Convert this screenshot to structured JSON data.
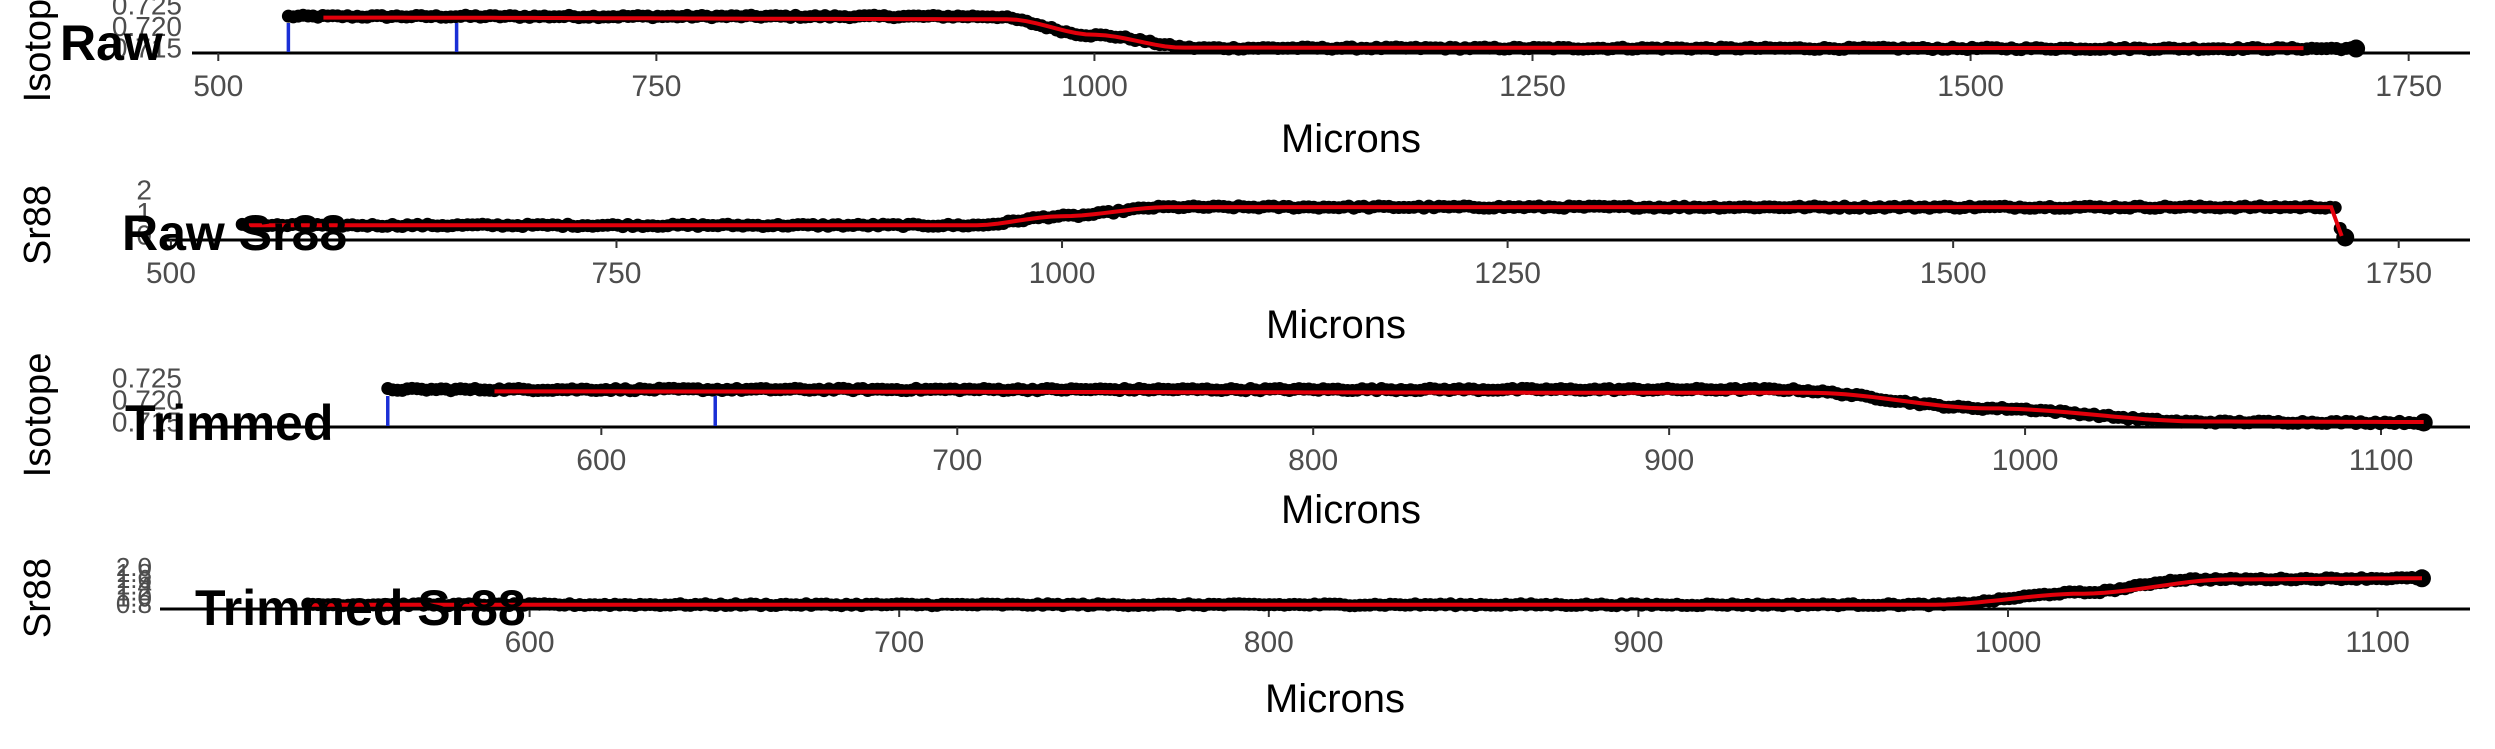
{
  "colors": {
    "points": "#000000",
    "fit": "#e3000b",
    "marker": "#1a2fd6",
    "axis": "#000000"
  },
  "chart_data": [
    {
      "type": "scatter",
      "title": "Raw",
      "xlabel": "Microns",
      "ylabel": "Isotope",
      "xlim": [
        485,
        1785
      ],
      "xticks": [
        "500",
        "750",
        "1000",
        "1250",
        "1500",
        "1750"
      ],
      "yticks": [
        "0.725",
        "0.720",
        "0.715"
      ],
      "ylim": [
        0.7095,
        0.7265
      ],
      "x_range": [
        540,
        1720
      ],
      "markers_x": [
        540,
        636
      ],
      "points_profile": {
        "x": [
          540,
          940,
          1000,
          1060,
          1720
        ],
        "y": [
          0.725,
          0.725,
          0.7168,
          0.7112,
          0.711
        ]
      },
      "fit_profile": {
        "x": [
          560,
          950,
          1000,
          1050,
          1690
        ],
        "y": [
          0.7245,
          0.7238,
          0.717,
          0.7114,
          0.7112
        ]
      }
    },
    {
      "type": "scatter",
      "title": "Raw Sr88",
      "xlabel": "Microns",
      "ylabel": "Sr88",
      "xlim": [
        495,
        1790
      ],
      "xticks": [
        "500",
        "750",
        "1000",
        "1250",
        "1500",
        "1750"
      ],
      "yticks": [
        "2",
        "1",
        "0"
      ],
      "ylim": [
        0,
        2.7
      ],
      "x_range": [
        540,
        1720
      ],
      "points_profile": {
        "x": [
          540,
          950,
          1000,
          1060,
          1715,
          1718,
          1720
        ],
        "y": [
          0.9,
          0.9,
          1.5,
          2.1,
          2.1,
          0.3,
          0.1
        ]
      },
      "fit_profile": {
        "x": [
          540,
          950,
          1000,
          1060,
          1712,
          1716,
          1718
        ],
        "y": [
          0.9,
          0.9,
          1.5,
          2.1,
          2.1,
          0.6,
          0.2
        ]
      }
    },
    {
      "type": "scatter",
      "title": "Trimmed",
      "xlabel": "Microns",
      "ylabel": "Isotope",
      "xlim": [
        485,
        1125
      ],
      "xticks": [
        "600",
        "700",
        "800",
        "900",
        "1000",
        "1100"
      ],
      "yticks": [
        "0.725",
        "0.720",
        "0.715"
      ],
      "ylim": [
        0.7095,
        0.7265
      ],
      "x_range": [
        540,
        1112
      ],
      "markers_x": [
        540,
        632
      ],
      "points_profile": {
        "x": [
          540,
          930,
          990,
          1050,
          1112
        ],
        "y": [
          0.725,
          0.725,
          0.717,
          0.7112,
          0.711
        ]
      },
      "fit_profile": {
        "x": [
          570,
          940,
          990,
          1050,
          1112
        ],
        "y": [
          0.7242,
          0.7236,
          0.717,
          0.7114,
          0.7112
        ]
      }
    },
    {
      "type": "scatter",
      "title": "Trimmed Sr88",
      "xlabel": "Microns",
      "ylabel": "Sr88",
      "xlim": [
        500,
        1125
      ],
      "xticks": [
        "600",
        "700",
        "800",
        "900",
        "1000",
        "1100"
      ],
      "yticks": [
        "2.0",
        "1.8",
        "1.6",
        "1.4",
        "1.2",
        "1.0",
        "0.8"
      ],
      "ylim": [
        0.7,
        2.2
      ],
      "x_range": [
        540,
        1112
      ],
      "points_profile": {
        "x": [
          540,
          980,
          1020,
          1050,
          1112
        ],
        "y": [
          0.85,
          0.85,
          1.4,
          2.0,
          2.05
        ]
      },
      "fit_profile": {
        "x": [
          540,
          980,
          1020,
          1060,
          1112
        ],
        "y": [
          0.85,
          0.85,
          1.35,
          2.0,
          2.05
        ]
      }
    }
  ]
}
